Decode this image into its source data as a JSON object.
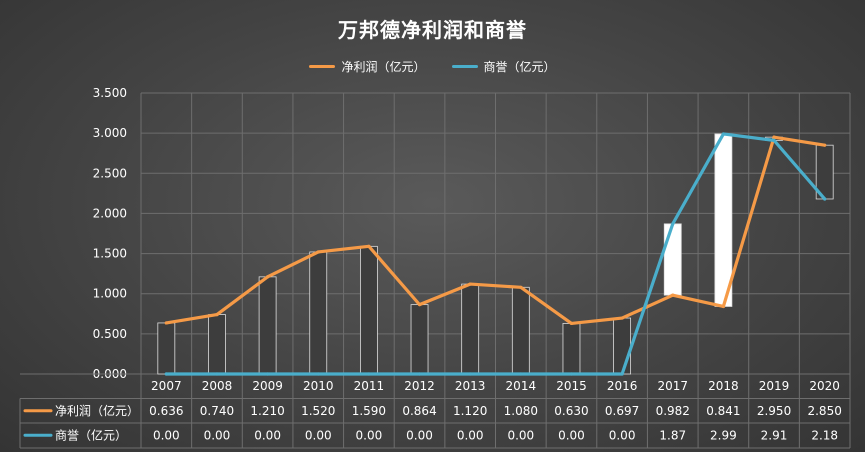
{
  "chart_data": {
    "type": "line",
    "title": "万邦德净利润和商誉",
    "categories": [
      "2007",
      "2008",
      "2009",
      "2010",
      "2011",
      "2012",
      "2013",
      "2014",
      "2015",
      "2016",
      "2017",
      "2018",
      "2019",
      "2020"
    ],
    "series": [
      {
        "name": "净利润（亿元）",
        "color": "#f59a47",
        "values": [
          0.636,
          0.74,
          1.21,
          1.52,
          1.59,
          0.864,
          1.12,
          1.08,
          0.63,
          0.697,
          0.982,
          0.841,
          2.95,
          2.85
        ],
        "labels": [
          "0.636",
          "0.740",
          "1.210",
          "1.520",
          "1.590",
          "0.864",
          "1.120",
          "1.080",
          "0.630",
          "0.697",
          "0.982",
          "0.841",
          "2.950",
          "2.850"
        ]
      },
      {
        "name": "商誉（亿元）",
        "color": "#4aaecb",
        "values": [
          0,
          0,
          0,
          0,
          0,
          0,
          0,
          0,
          0,
          0,
          1.87,
          2.99,
          2.91,
          2.18
        ],
        "labels": [
          "0.00",
          "0.00",
          "0.00",
          "0.00",
          "0.00",
          "0.00",
          "0.00",
          "0.00",
          "0.00",
          "0.00",
          "1.87",
          "2.99",
          "2.91",
          "2.18"
        ]
      }
    ],
    "ylim": [
      0,
      3.5
    ],
    "yticks": [
      "0.000",
      "0.500",
      "1.000",
      "1.500",
      "2.000",
      "2.500",
      "3.000",
      "3.500"
    ],
    "grid": true,
    "legend": "top-center",
    "data_table": true,
    "up_down_bars": true
  }
}
